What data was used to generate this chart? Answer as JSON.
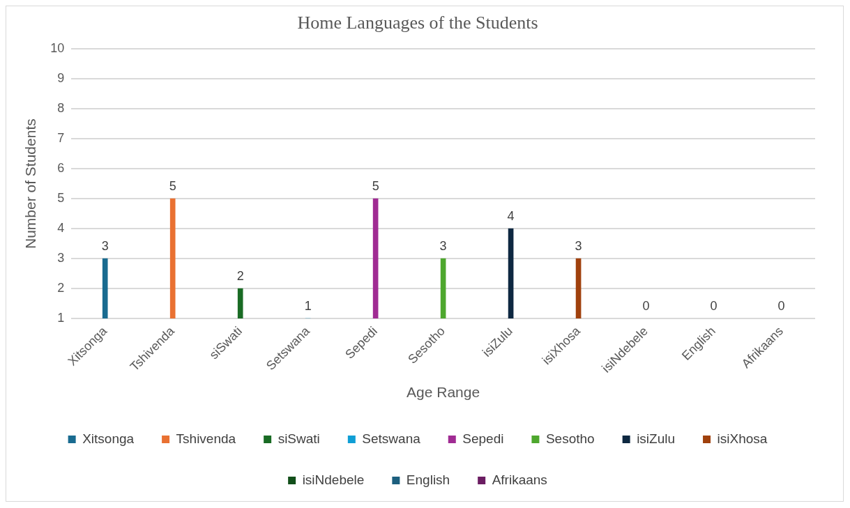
{
  "chart_data": {
    "type": "bar",
    "title": "Home Languages of the Students",
    "xlabel": "Age Range",
    "ylabel": "Number of Students",
    "categories": [
      "Xitsonga",
      "Tshivenda",
      "siSwati",
      "Setswana",
      "Sepedi",
      "Sesotho",
      "isiZulu",
      "isiXhosa",
      "isiNdebele",
      "English",
      "Afrikaans"
    ],
    "series": [
      {
        "name": "Xitsonga",
        "color": "#196b90",
        "values": [
          3,
          null,
          null,
          null,
          null,
          null,
          null,
          null,
          null,
          null,
          null
        ],
        "value_labels": [
          "3",
          null,
          null,
          null,
          null,
          null,
          null,
          null,
          null,
          null,
          null
        ]
      },
      {
        "name": "Tshivenda",
        "color": "#e97132",
        "values": [
          null,
          5,
          null,
          null,
          null,
          null,
          null,
          null,
          null,
          null,
          null
        ],
        "value_labels": [
          null,
          "5",
          null,
          null,
          null,
          null,
          null,
          null,
          null,
          null,
          null
        ]
      },
      {
        "name": "siSwati",
        "color": "#196b24",
        "values": [
          null,
          null,
          2,
          null,
          null,
          null,
          null,
          null,
          null,
          null,
          null
        ],
        "value_labels": [
          null,
          null,
          "2",
          null,
          null,
          null,
          null,
          null,
          null,
          null,
          null
        ]
      },
      {
        "name": "Setswana",
        "color": "#0f9ed5",
        "values": [
          null,
          null,
          null,
          1,
          null,
          null,
          null,
          null,
          null,
          null,
          null
        ],
        "value_labels": [
          null,
          null,
          null,
          "1",
          null,
          null,
          null,
          null,
          null,
          null,
          null
        ]
      },
      {
        "name": "Sepedi",
        "color": "#a02b93",
        "values": [
          null,
          null,
          null,
          null,
          5,
          null,
          null,
          null,
          null,
          null,
          null
        ],
        "value_labels": [
          null,
          null,
          null,
          null,
          "5",
          null,
          null,
          null,
          null,
          null,
          null
        ]
      },
      {
        "name": "Sesotho",
        "color": "#4ea72e",
        "values": [
          null,
          null,
          null,
          null,
          null,
          3,
          null,
          null,
          null,
          null,
          null
        ],
        "value_labels": [
          null,
          null,
          null,
          null,
          null,
          "3",
          null,
          null,
          null,
          null,
          null
        ]
      },
      {
        "name": "isiZulu",
        "color": "#0e2841",
        "values": [
          null,
          null,
          null,
          null,
          null,
          null,
          4,
          null,
          null,
          null,
          null
        ],
        "value_labels": [
          null,
          null,
          null,
          null,
          null,
          null,
          "4",
          null,
          null,
          null,
          null
        ]
      },
      {
        "name": "isiXhosa",
        "color": "#a0410d",
        "values": [
          null,
          null,
          null,
          null,
          null,
          null,
          null,
          3,
          null,
          null,
          null
        ],
        "value_labels": [
          null,
          null,
          null,
          null,
          null,
          null,
          null,
          "3",
          null,
          null,
          null
        ]
      },
      {
        "name": "isiNdebele",
        "color": "#124f1a",
        "values": [
          null,
          null,
          null,
          null,
          null,
          null,
          null,
          null,
          null,
          null,
          null
        ],
        "value_labels": [
          null,
          null,
          null,
          null,
          null,
          null,
          null,
          null,
          "0",
          null,
          null
        ]
      },
      {
        "name": "English",
        "color": "#1c5f7e",
        "values": [
          null,
          null,
          null,
          null,
          null,
          null,
          null,
          null,
          null,
          null,
          null
        ],
        "value_labels": [
          null,
          null,
          null,
          null,
          null,
          null,
          null,
          null,
          null,
          "0",
          null
        ]
      },
      {
        "name": "Afrikaans",
        "color": "#6b1d62",
        "values": [
          null,
          null,
          null,
          null,
          null,
          null,
          null,
          null,
          null,
          null,
          null
        ],
        "value_labels": [
          null,
          null,
          null,
          null,
          null,
          null,
          null,
          null,
          null,
          null,
          "0"
        ]
      }
    ],
    "ylim": [
      1,
      10
    ],
    "yticks": [
      1,
      2,
      3,
      4,
      5,
      6,
      7,
      8,
      9,
      10
    ],
    "grid": "y",
    "legend": "bottom"
  }
}
